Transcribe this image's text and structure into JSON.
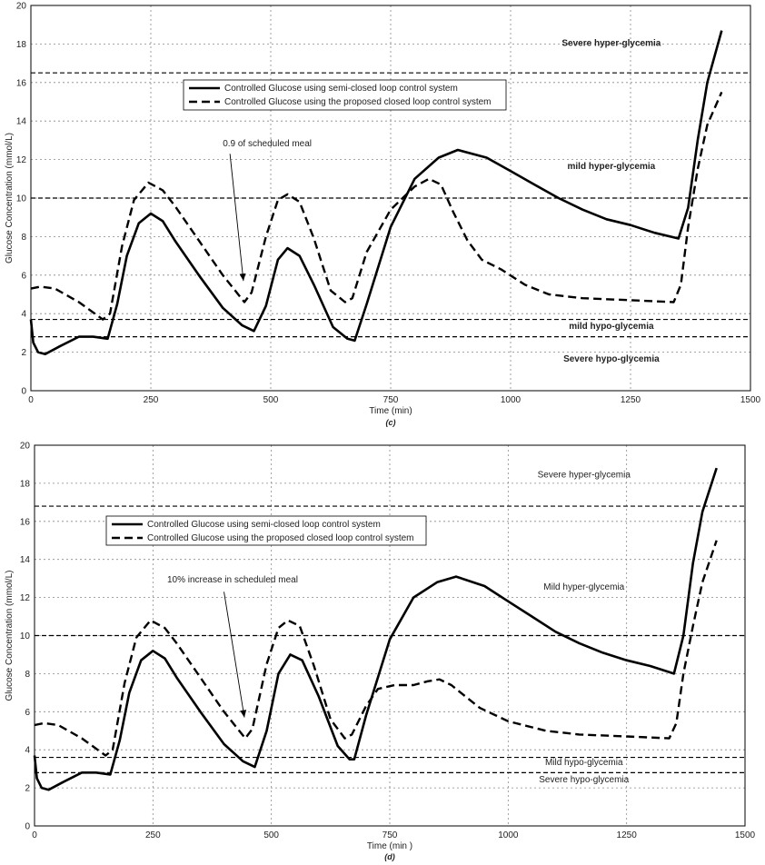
{
  "chart_data": [
    {
      "type": "line",
      "panel_label": "(c)",
      "xlabel": "Time (min)",
      "ylabel": "Glucose Concentration (mmol/L)",
      "xlim": [
        0,
        1500
      ],
      "ylim": [
        0,
        20
      ],
      "xticks": [
        0,
        250,
        500,
        750,
        1000,
        1250,
        1500
      ],
      "yticks": [
        0,
        2,
        4,
        6,
        8,
        10,
        12,
        14,
        16,
        18,
        20
      ],
      "grid": true,
      "legend_position": "upper-center",
      "zone_labels_bold": true,
      "thresholds": [
        16.5,
        10.0,
        3.7,
        2.8
      ],
      "zone_labels": [
        {
          "text": "Severe hyper-glycemia",
          "x": 1210,
          "y": 17.9
        },
        {
          "text": "mild hyper-glycemia",
          "x": 1210,
          "y": 11.5
        },
        {
          "text": "mild hypo-glycemia",
          "x": 1210,
          "y": 3.2
        },
        {
          "text": "Severe hypo-glycemia",
          "x": 1210,
          "y": 1.5
        }
      ],
      "annotation": {
        "text": "0.9 of scheduled meal",
        "text_x": 400,
        "text_y": 12.7,
        "arrow_from": [
          415,
          12.3
        ],
        "arrow_to": [
          443,
          5.7
        ]
      },
      "series": [
        {
          "name": "Controlled Glucose using semi-closed loop control system",
          "style": "solid",
          "x": [
            0,
            5,
            15,
            30,
            60,
            100,
            130,
            160,
            180,
            200,
            225,
            250,
            275,
            300,
            350,
            400,
            440,
            465,
            490,
            515,
            535,
            560,
            590,
            630,
            660,
            675,
            700,
            750,
            800,
            850,
            890,
            950,
            1000,
            1050,
            1100,
            1150,
            1200,
            1250,
            1300,
            1350,
            1370,
            1390,
            1410,
            1440
          ],
          "y": [
            3.7,
            2.5,
            2.0,
            1.9,
            2.3,
            2.8,
            2.8,
            2.7,
            4.5,
            7.0,
            8.7,
            9.2,
            8.8,
            7.8,
            6.0,
            4.3,
            3.4,
            3.1,
            4.4,
            6.8,
            7.4,
            7.0,
            5.5,
            3.3,
            2.7,
            2.6,
            4.5,
            8.5,
            11.0,
            12.1,
            12.5,
            12.1,
            11.4,
            10.7,
            10.0,
            9.4,
            8.9,
            8.6,
            8.2,
            7.9,
            9.5,
            13.0,
            16.0,
            18.7
          ]
        },
        {
          "name": "Controlled Glucose using the proposed closed loop control system",
          "style": "dashed",
          "x": [
            0,
            20,
            50,
            100,
            150,
            165,
            190,
            215,
            245,
            275,
            300,
            350,
            400,
            445,
            460,
            490,
            515,
            535,
            560,
            590,
            625,
            655,
            670,
            700,
            750,
            800,
            830,
            855,
            880,
            910,
            940,
            980,
            1030,
            1080,
            1150,
            1250,
            1340,
            1355,
            1370,
            1390,
            1410,
            1440
          ],
          "y": [
            5.3,
            5.4,
            5.3,
            4.6,
            3.7,
            4.0,
            7.5,
            9.9,
            10.8,
            10.4,
            9.6,
            7.8,
            6.0,
            4.6,
            5.1,
            8.0,
            9.9,
            10.2,
            9.8,
            7.9,
            5.2,
            4.6,
            4.8,
            7.2,
            9.4,
            10.6,
            11.0,
            10.7,
            9.3,
            7.8,
            6.8,
            6.3,
            5.5,
            5.0,
            4.8,
            4.7,
            4.6,
            5.5,
            8.5,
            11.5,
            13.8,
            15.5
          ]
        }
      ]
    },
    {
      "type": "line",
      "panel_label": "(d)",
      "xlabel": "Time (min )",
      "ylabel": "Glucose Concentration (mmol/L)",
      "xlim": [
        0,
        1500
      ],
      "ylim": [
        0,
        20
      ],
      "xticks": [
        0,
        250,
        500,
        750,
        1000,
        1250,
        1500
      ],
      "yticks": [
        0,
        2,
        4,
        6,
        8,
        10,
        12,
        14,
        16,
        18,
        20
      ],
      "grid": true,
      "legend_position": "upper-left",
      "zone_labels_bold": false,
      "thresholds": [
        16.8,
        10.0,
        3.6,
        2.8
      ],
      "zone_labels": [
        {
          "text": "Severe hyper-glycemia",
          "x": 1160,
          "y": 18.3
        },
        {
          "text": "Mild hyper-glycemia",
          "x": 1160,
          "y": 12.4
        },
        {
          "text": "Mild hypo-glycemia",
          "x": 1160,
          "y": 3.2
        },
        {
          "text": "Severe hypo-glycemia",
          "x": 1160,
          "y": 2.3
        }
      ],
      "annotation": {
        "text": "10% increase in scheduled meal",
        "text_x": 280,
        "text_y": 12.8,
        "arrow_from": [
          400,
          12.3
        ],
        "arrow_to": [
          443,
          5.7
        ]
      },
      "series": [
        {
          "name": "Controlled Glucose using semi-closed loop control system",
          "style": "solid",
          "x": [
            0,
            5,
            15,
            30,
            60,
            100,
            130,
            160,
            180,
            200,
            225,
            250,
            275,
            300,
            350,
            400,
            440,
            465,
            490,
            515,
            540,
            565,
            600,
            640,
            665,
            675,
            700,
            750,
            800,
            850,
            890,
            950,
            1000,
            1050,
            1100,
            1150,
            1200,
            1250,
            1300,
            1350,
            1370,
            1390,
            1410,
            1440
          ],
          "y": [
            3.7,
            2.5,
            2.0,
            1.9,
            2.3,
            2.8,
            2.8,
            2.7,
            4.5,
            7.0,
            8.7,
            9.2,
            8.8,
            7.8,
            6.0,
            4.3,
            3.4,
            3.1,
            5.0,
            8.0,
            9.0,
            8.7,
            6.8,
            4.2,
            3.5,
            3.5,
            5.8,
            9.8,
            12.0,
            12.8,
            13.1,
            12.6,
            11.8,
            11.0,
            10.2,
            9.6,
            9.1,
            8.7,
            8.4,
            8.0,
            10.0,
            13.8,
            16.5,
            18.8
          ]
        },
        {
          "name": "Controlled Glucose using the proposed closed loop control system",
          "style": "dashed",
          "x": [
            0,
            20,
            50,
            100,
            150,
            165,
            190,
            215,
            245,
            275,
            300,
            350,
            400,
            445,
            460,
            490,
            515,
            535,
            560,
            590,
            625,
            655,
            670,
            700,
            725,
            760,
            800,
            830,
            855,
            880,
            900,
            940,
            1000,
            1080,
            1150,
            1250,
            1340,
            1355,
            1370,
            1390,
            1410,
            1440
          ],
          "y": [
            5.3,
            5.4,
            5.3,
            4.6,
            3.7,
            4.0,
            7.5,
            9.9,
            10.8,
            10.4,
            9.6,
            7.8,
            6.0,
            4.6,
            5.1,
            8.5,
            10.4,
            10.8,
            10.5,
            8.4,
            5.6,
            4.6,
            4.8,
            6.3,
            7.2,
            7.4,
            7.4,
            7.6,
            7.7,
            7.4,
            7.0,
            6.2,
            5.5,
            5.0,
            4.8,
            4.7,
            4.6,
            5.4,
            8.0,
            10.5,
            12.8,
            15.0
          ]
        }
      ]
    }
  ]
}
